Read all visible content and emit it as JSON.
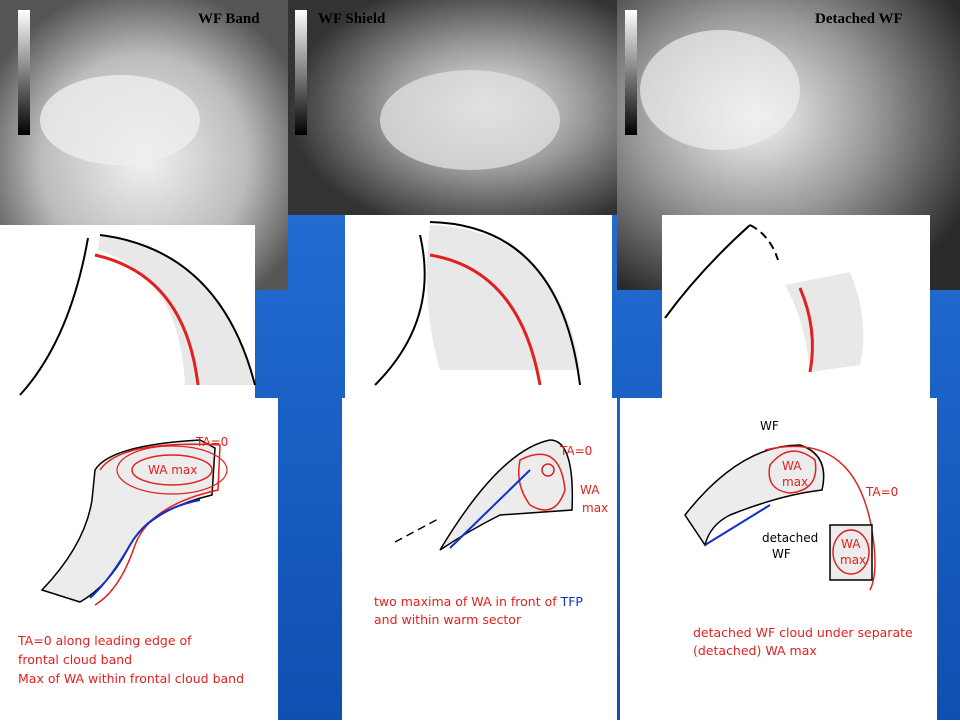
{
  "panels": [
    {
      "title": "WF Band",
      "diagram": {
        "front_label": "TA=0",
        "max_label": "WA max"
      },
      "caption": [
        "TA=0 along leading edge of",
        "frontal cloud band",
        "Max of WA within frontal cloud band"
      ]
    },
    {
      "title": "WF Shield",
      "diagram": {
        "front_label": "TA=0",
        "max_label": [
          "WA",
          "max"
        ]
      },
      "caption": [
        {
          "text": "two maxima of WA in front of",
          "highlight": "TFP"
        },
        "and within warm sector"
      ]
    },
    {
      "title": "Detached WF",
      "diagram": {
        "wf_label": "WF",
        "max_label": [
          "WA",
          "max"
        ],
        "front_label": "TA=0",
        "detached_label": [
          "detached",
          "WF"
        ],
        "detached_max_label": [
          "WA",
          "max"
        ]
      },
      "caption": [
        "detached WF cloud under separate",
        "(detached) WA max"
      ]
    }
  ]
}
